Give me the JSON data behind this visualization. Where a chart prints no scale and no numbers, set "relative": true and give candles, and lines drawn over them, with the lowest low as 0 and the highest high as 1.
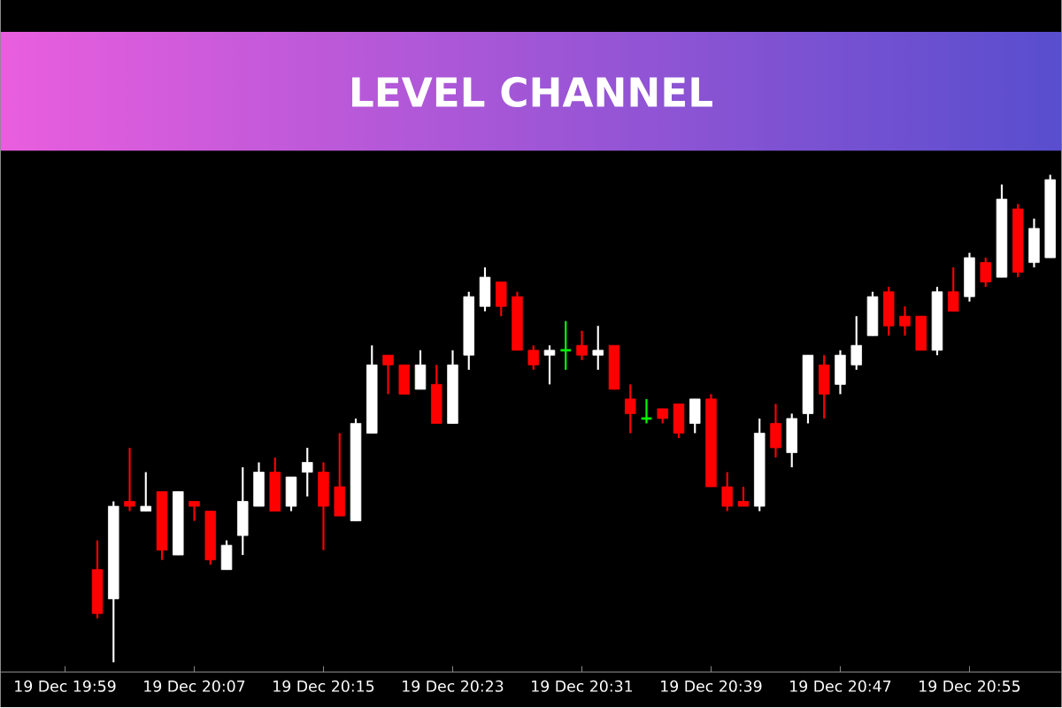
{
  "chart_data": {
    "type": "candlestick",
    "title": "LEVEL CHANNEL",
    "relative": true,
    "categories": [
      "19 Dec 19:59",
      null,
      null,
      null,
      null,
      null,
      null,
      null,
      "19 Dec 20:07",
      null,
      null,
      null,
      null,
      null,
      null,
      null,
      "19 Dec 20:15",
      null,
      null,
      null,
      null,
      null,
      null,
      null,
      "19 Dec 20:23",
      null,
      null,
      null,
      null,
      null,
      null,
      null,
      "19 Dec 20:31",
      null,
      null,
      null,
      null,
      null,
      null,
      null,
      "19 Dec 20:39",
      null,
      null,
      null,
      null,
      null,
      null,
      null,
      "19 Dec 20:47",
      null,
      null,
      null,
      null,
      null,
      null,
      null,
      "19 Dec 20:55",
      null,
      null,
      null,
      null,
      null
    ],
    "ohlc": [
      null,
      null,
      [
        0.19,
        0.25,
        0.09,
        0.1
      ],
      [
        0.13,
        0.33,
        0,
        0.32
      ],
      [
        0.33,
        0.44,
        0.31,
        0.32
      ],
      [
        0.31,
        0.39,
        0.31,
        0.32
      ],
      [
        0.35,
        0.35,
        0.21,
        0.23
      ],
      [
        0.22,
        0.35,
        0.22,
        0.35
      ],
      [
        0.33,
        0.33,
        0.29,
        0.32
      ],
      [
        0.31,
        0.31,
        0.2,
        0.21
      ],
      [
        0.19,
        0.25,
        0.19,
        0.24
      ],
      [
        0.26,
        0.4,
        0.22,
        0.33
      ],
      [
        0.32,
        0.41,
        0.32,
        0.39
      ],
      [
        0.39,
        0.42,
        0.31,
        0.31
      ],
      [
        0.32,
        0.38,
        0.31,
        0.38
      ],
      [
        0.39,
        0.44,
        0.34,
        0.41
      ],
      [
        0.39,
        0.41,
        0.23,
        0.32
      ],
      [
        0.36,
        0.47,
        0.3,
        0.3
      ],
      [
        0.29,
        0.5,
        0.29,
        0.49
      ],
      [
        0.47,
        0.65,
        0.47,
        0.61
      ],
      [
        0.63,
        0.63,
        0.55,
        0.61
      ],
      [
        0.61,
        0.61,
        0.55,
        0.55
      ],
      [
        0.56,
        0.64,
        0.56,
        0.61
      ],
      [
        0.57,
        0.61,
        0.49,
        0.49
      ],
      [
        0.49,
        0.64,
        0.49,
        0.61
      ],
      [
        0.63,
        0.76,
        0.6,
        0.75
      ],
      [
        0.73,
        0.81,
        0.72,
        0.79
      ],
      [
        0.78,
        0.78,
        0.71,
        0.73
      ],
      [
        0.75,
        0.76,
        0.64,
        0.64
      ],
      [
        0.64,
        0.65,
        0.6,
        0.61
      ],
      [
        0.63,
        0.65,
        0.57,
        0.64
      ],
      [
        0.64,
        0.7,
        0.6,
        0.64
      ],
      [
        0.65,
        0.68,
        0.62,
        0.63
      ],
      [
        0.63,
        0.69,
        0.6,
        0.64
      ],
      [
        0.65,
        0.65,
        0.56,
        0.56
      ],
      [
        0.54,
        0.57,
        0.47,
        0.51
      ],
      [
        0.5,
        0.54,
        0.49,
        0.5
      ],
      [
        0.52,
        0.52,
        0.49,
        0.5
      ],
      [
        0.53,
        0.53,
        0.46,
        0.47
      ],
      [
        0.49,
        0.54,
        0.47,
        0.54
      ],
      [
        0.54,
        0.55,
        0.36,
        0.36
      ],
      [
        0.36,
        0.39,
        0.31,
        0.32
      ],
      [
        0.33,
        0.36,
        0.32,
        0.32
      ],
      [
        0.32,
        0.5,
        0.31,
        0.47
      ],
      [
        0.49,
        0.53,
        0.42,
        0.44
      ],
      [
        0.43,
        0.51,
        0.4,
        0.5
      ],
      [
        0.51,
        0.63,
        0.49,
        0.63
      ],
      [
        0.61,
        0.63,
        0.5,
        0.55
      ],
      [
        0.57,
        0.64,
        0.55,
        0.63
      ],
      [
        0.61,
        0.71,
        0.6,
        0.65
      ],
      [
        0.67,
        0.76,
        0.67,
        0.75
      ],
      [
        0.76,
        0.77,
        0.67,
        0.69
      ],
      [
        0.71,
        0.73,
        0.67,
        0.69
      ],
      [
        0.71,
        0.71,
        0.64,
        0.64
      ],
      [
        0.64,
        0.77,
        0.63,
        0.76
      ],
      [
        0.76,
        0.81,
        0.72,
        0.72
      ],
      [
        0.75,
        0.84,
        0.74,
        0.83
      ],
      [
        0.82,
        0.83,
        0.77,
        0.78
      ],
      [
        0.79,
        0.98,
        0.79,
        0.95
      ],
      [
        0.93,
        0.94,
        0.79,
        0.8
      ],
      [
        0.82,
        0.91,
        0.81,
        0.89
      ],
      [
        0.83,
        1,
        0.83,
        0.99
      ]
    ],
    "colors": [
      null,
      null,
      "#ff0000",
      "#ffffff",
      "#ff0000",
      "#ffffff",
      "#ff0000",
      "#ffffff",
      "#ff0000",
      "#ff0000",
      "#ffffff",
      "#ffffff",
      "#ffffff",
      "#ff0000",
      "#ffffff",
      "#ffffff",
      "#ff0000",
      "#ff0000",
      "#ffffff",
      "#ffffff",
      "#ff0000",
      "#ff0000",
      "#ffffff",
      "#ff0000",
      "#ffffff",
      "#ffffff",
      "#ffffff",
      "#ff0000",
      "#ff0000",
      "#ff0000",
      "#ffffff",
      "#00ff00",
      "#ff0000",
      "#ffffff",
      "#ff0000",
      "#ff0000",
      "#00ff00",
      "#ff0000",
      "#ff0000",
      "#ffffff",
      "#ff0000",
      "#ff0000",
      "#ff0000",
      "#ffffff",
      "#ff0000",
      "#ffffff",
      "#ffffff",
      "#ff0000",
      "#ffffff",
      "#ffffff",
      "#ffffff",
      "#ff0000",
      "#ff0000",
      "#ff0000",
      "#ffffff",
      "#ff0000",
      "#ffffff",
      "#ff0000",
      "#ffffff",
      "#ff0000",
      "#ffffff",
      "#ffffff"
    ]
  }
}
